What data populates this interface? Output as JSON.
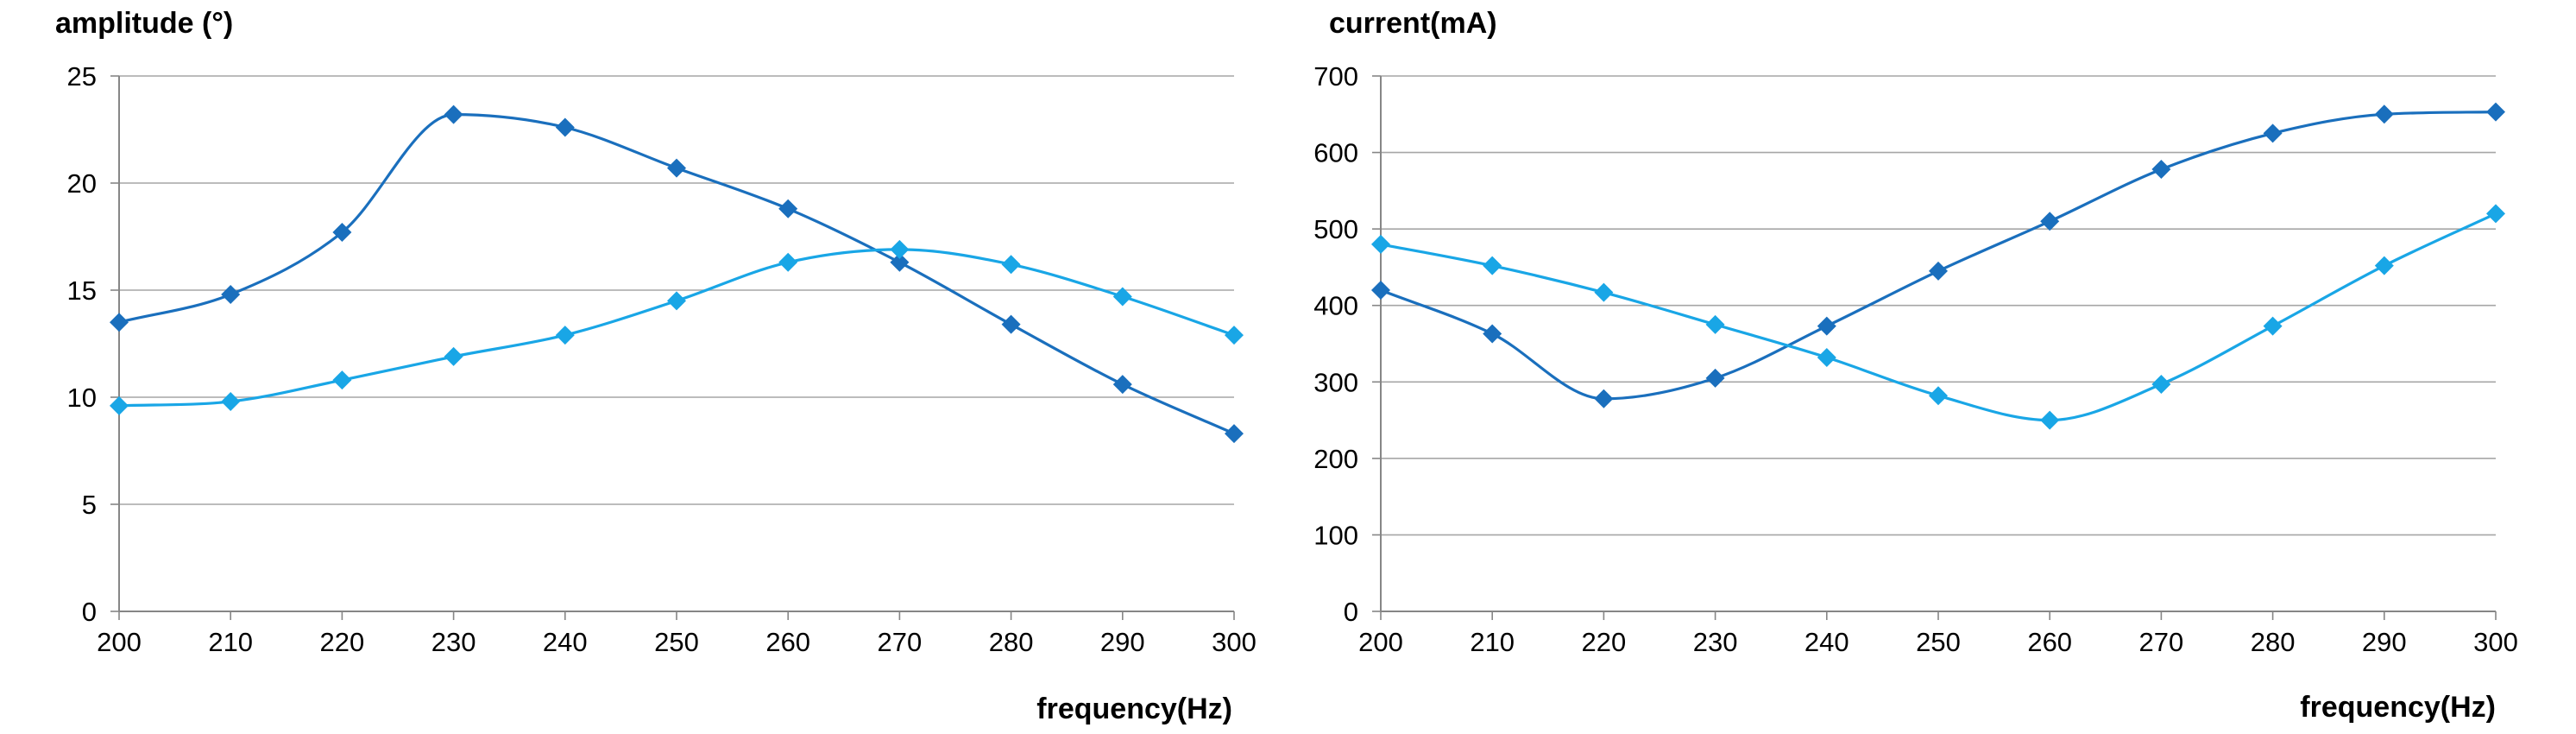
{
  "chart_data": [
    {
      "type": "line",
      "ylabel": "amplitude (°)",
      "xlabel": "frequency(Hz)",
      "x": [
        200,
        210,
        220,
        230,
        240,
        250,
        260,
        270,
        280,
        290,
        300
      ],
      "xlim": [
        200,
        300
      ],
      "ylim": [
        0,
        25
      ],
      "yticks": [
        0,
        5,
        10,
        15,
        20,
        25
      ],
      "grid": true,
      "smooth": true,
      "marker": "diamond",
      "series": [
        {
          "color": "#1a6fbd",
          "values": [
            13.5,
            14.8,
            17.7,
            23.2,
            22.6,
            20.7,
            18.8,
            16.3,
            13.4,
            10.6,
            8.3
          ]
        },
        {
          "color": "#19a6e6",
          "values": [
            9.6,
            9.8,
            10.8,
            11.9,
            12.9,
            14.5,
            16.3,
            16.9,
            16.2,
            14.7,
            12.9
          ]
        }
      ]
    },
    {
      "type": "line",
      "ylabel": "current(mA)",
      "xlabel": "frequency(Hz)",
      "x": [
        200,
        210,
        220,
        230,
        240,
        250,
        260,
        270,
        280,
        290,
        300
      ],
      "xlim": [
        200,
        300
      ],
      "ylim": [
        0,
        700
      ],
      "yticks": [
        0,
        100,
        200,
        300,
        400,
        500,
        600,
        700
      ],
      "grid": true,
      "smooth": true,
      "marker": "diamond",
      "series": [
        {
          "color": "#1a6fbd",
          "values": [
            420,
            363,
            278,
            305,
            373,
            445,
            510,
            578,
            625,
            650,
            653
          ]
        },
        {
          "color": "#19a6e6",
          "values": [
            480,
            452,
            417,
            375,
            332,
            282,
            250,
            297,
            373,
            452,
            520
          ]
        }
      ]
    }
  ]
}
